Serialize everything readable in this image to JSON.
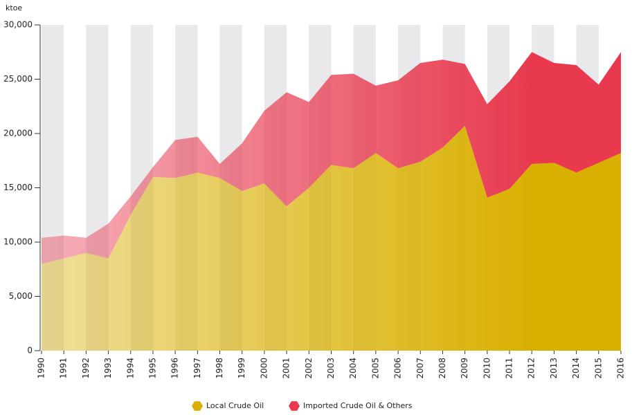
{
  "chart_data": {
    "type": "stacked_area",
    "y_unit": "ktoe",
    "categories": [
      "1990",
      "1991",
      "1992",
      "1993",
      "1994",
      "1995",
      "1996",
      "1997",
      "1998",
      "1999",
      "2000",
      "2001",
      "2002",
      "2003",
      "2004",
      "2005",
      "2006",
      "2007",
      "2008",
      "2009",
      "2010",
      "2011",
      "2012",
      "2013",
      "2014",
      "2015",
      "2016"
    ],
    "series": [
      {
        "name": "Local Crude Oil",
        "color": "#d9b000",
        "values": [
          8000,
          8500,
          9000,
          8500,
          12500,
          16000,
          15900,
          16400,
          15900,
          14700,
          15400,
          13300,
          15000,
          17100,
          16800,
          18200,
          16800,
          17400,
          18700,
          20700,
          14100,
          14900,
          17200,
          17300,
          16400,
          17300,
          18200
        ]
      },
      {
        "name": "Imported Crude Oil & Others",
        "color": "#e8394e",
        "values": [
          2400,
          2100,
          1400,
          3200,
          1700,
          900,
          3500,
          3300,
          1300,
          4400,
          6700,
          10500,
          7900,
          8300,
          8700,
          6200,
          8100,
          9100,
          8100,
          5700,
          8600,
          9900,
          10300,
          9200,
          9900,
          7200,
          9300
        ]
      }
    ],
    "ylim": [
      0,
      30000
    ],
    "yticks": [
      0,
      {
        "value": 5000,
        "label": "5,000"
      },
      {
        "value": 10000,
        "label": "10,000"
      },
      {
        "value": 15000,
        "label": "15,000"
      },
      {
        "value": 20000,
        "label": "20,000"
      },
      {
        "value": 25000,
        "label": "25,000"
      },
      {
        "value": 30000,
        "label": "30,000"
      }
    ]
  }
}
